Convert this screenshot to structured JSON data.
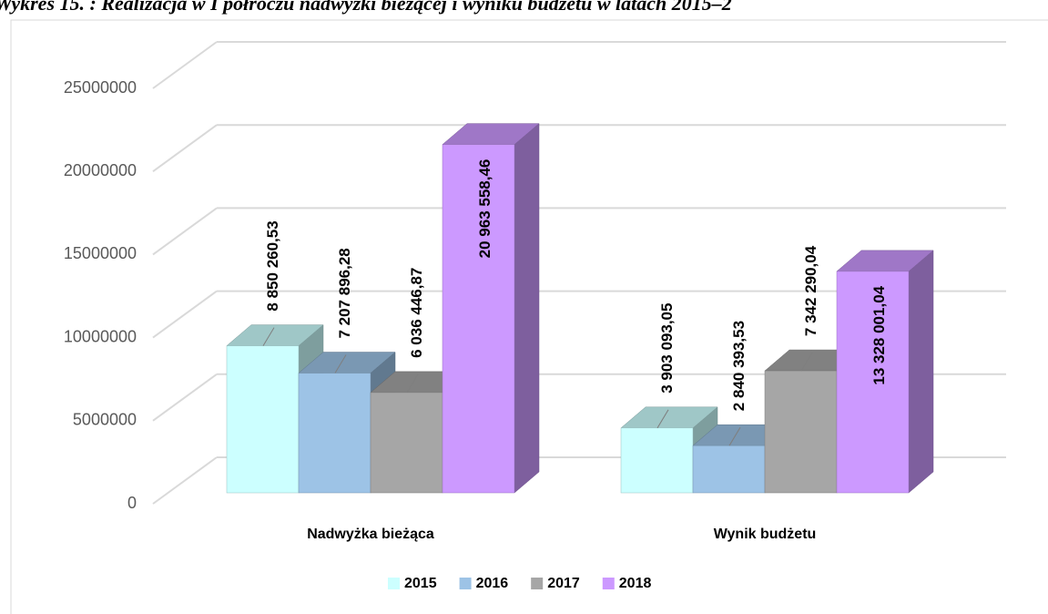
{
  "chart_data": {
    "type": "bar3d",
    "title": "Wykres 15. : Realizacja w I półroczu nadwyżki bieżącej i wyniku budżetu w latach 2015–2",
    "categories": [
      "Nadwyżka bieżąca",
      "Wynik budżetu"
    ],
    "series": [
      {
        "name": "2015",
        "color": "#ccffff",
        "values": [
          8850260.53,
          3903093.05
        ],
        "value_labels": [
          "8 850 260,53",
          "3 903 093,05"
        ]
      },
      {
        "name": "2016",
        "color": "#9dc3e6",
        "values": [
          7207896.28,
          2840393.53
        ],
        "value_labels": [
          "7 207 896,28",
          "2 840 393,53"
        ]
      },
      {
        "name": "2017",
        "color": "#a6a6a6",
        "values": [
          6036446.87,
          7342290.04
        ],
        "value_labels": [
          "6 036 446,87",
          "7 342 290,04"
        ]
      },
      {
        "name": "2018",
        "color": "#cc99ff",
        "values": [
          20963558.46,
          13328001.04
        ],
        "value_labels": [
          "20 963 558,46",
          "13 328 001,04"
        ]
      }
    ],
    "ylim": [
      0,
      25000000
    ],
    "yticks": [
      0,
      5000000,
      10000000,
      15000000,
      20000000,
      25000000
    ],
    "grid": true,
    "legend": "bottom"
  }
}
